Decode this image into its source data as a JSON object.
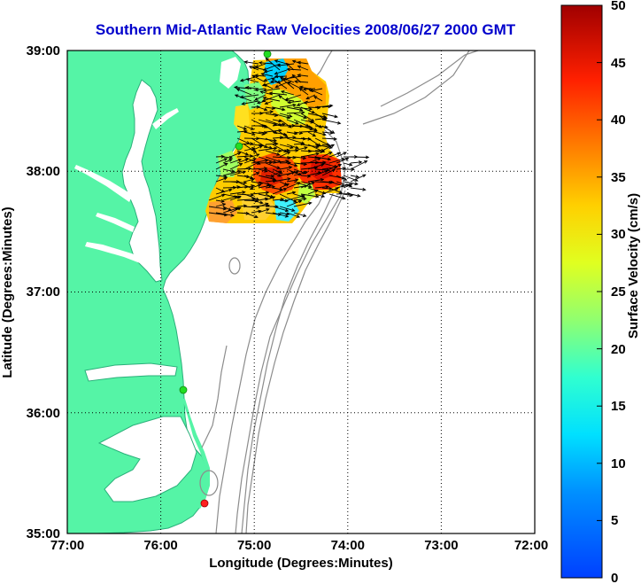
{
  "title": "Southern Mid-Atlantic Raw Velocities 2008/06/27 2000 GMT",
  "x_axis": {
    "label": "Longitude (Degrees:Minutes)",
    "ticks": [
      "77:00",
      "76:00",
      "75:00",
      "74:00",
      "73:00",
      "72:00"
    ]
  },
  "y_axis": {
    "label": "Latitude (Degrees:Minutes)",
    "ticks": [
      "39:00",
      "38:00",
      "37:00",
      "36:00",
      "35:00"
    ]
  },
  "colorbar": {
    "label": "Surface Velocity (cm/s)",
    "ticks": [
      "50",
      "45",
      "40",
      "35",
      "30",
      "25",
      "20",
      "15",
      "10",
      "5",
      "0"
    ],
    "range": [
      0,
      50
    ],
    "colormap": "jet"
  },
  "map_extent": {
    "lon": [
      -77,
      -72
    ],
    "lat": [
      35,
      39
    ]
  },
  "colors": {
    "land": "#55f4a6",
    "water": "#ffffff",
    "bathymetry": "#8c8c8c",
    "title": "#0000cc",
    "station_active": "#22dd22",
    "station_inactive": "#ff2020"
  },
  "stations": [
    {
      "lon": -74.85,
      "lat": 38.95,
      "status": "active"
    },
    {
      "lon": -75.1,
      "lat": 38.2,
      "status": "active"
    },
    {
      "lon": -75.7,
      "lat": 36.2,
      "status": "active"
    },
    {
      "lon": -75.48,
      "lat": 35.25,
      "status": "inactive"
    }
  ],
  "velocity_field": {
    "lon_range": [
      -75.55,
      -74.05
    ],
    "lat_range": [
      37.55,
      38.92
    ],
    "mean_direction": "east",
    "speed_range_cm_s": [
      8,
      42
    ]
  }
}
